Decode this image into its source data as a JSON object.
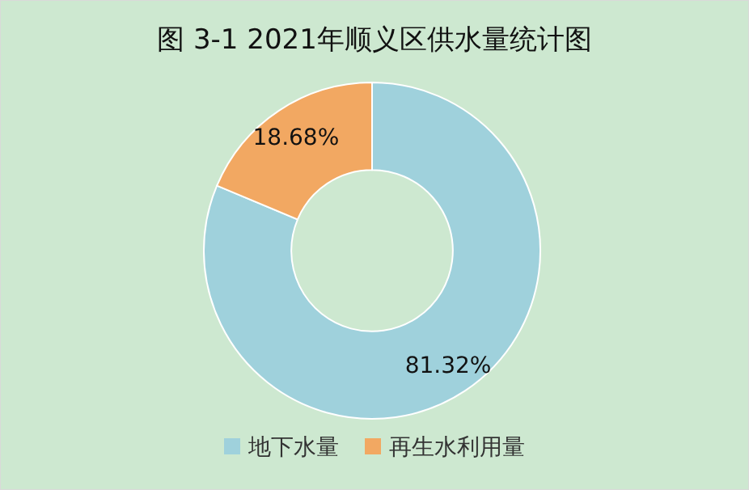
{
  "chart_data": {
    "type": "donut",
    "title": "图 3-1 2021年顺义区供水量统计图",
    "categories": [
      "地下水量",
      "再生水利用量"
    ],
    "values": [
      81.32,
      18.68
    ],
    "colors": [
      "#9fd1dc",
      "#f2a862"
    ],
    "value_labels": [
      "81.32%",
      "18.68%"
    ],
    "legend": "bottom"
  }
}
